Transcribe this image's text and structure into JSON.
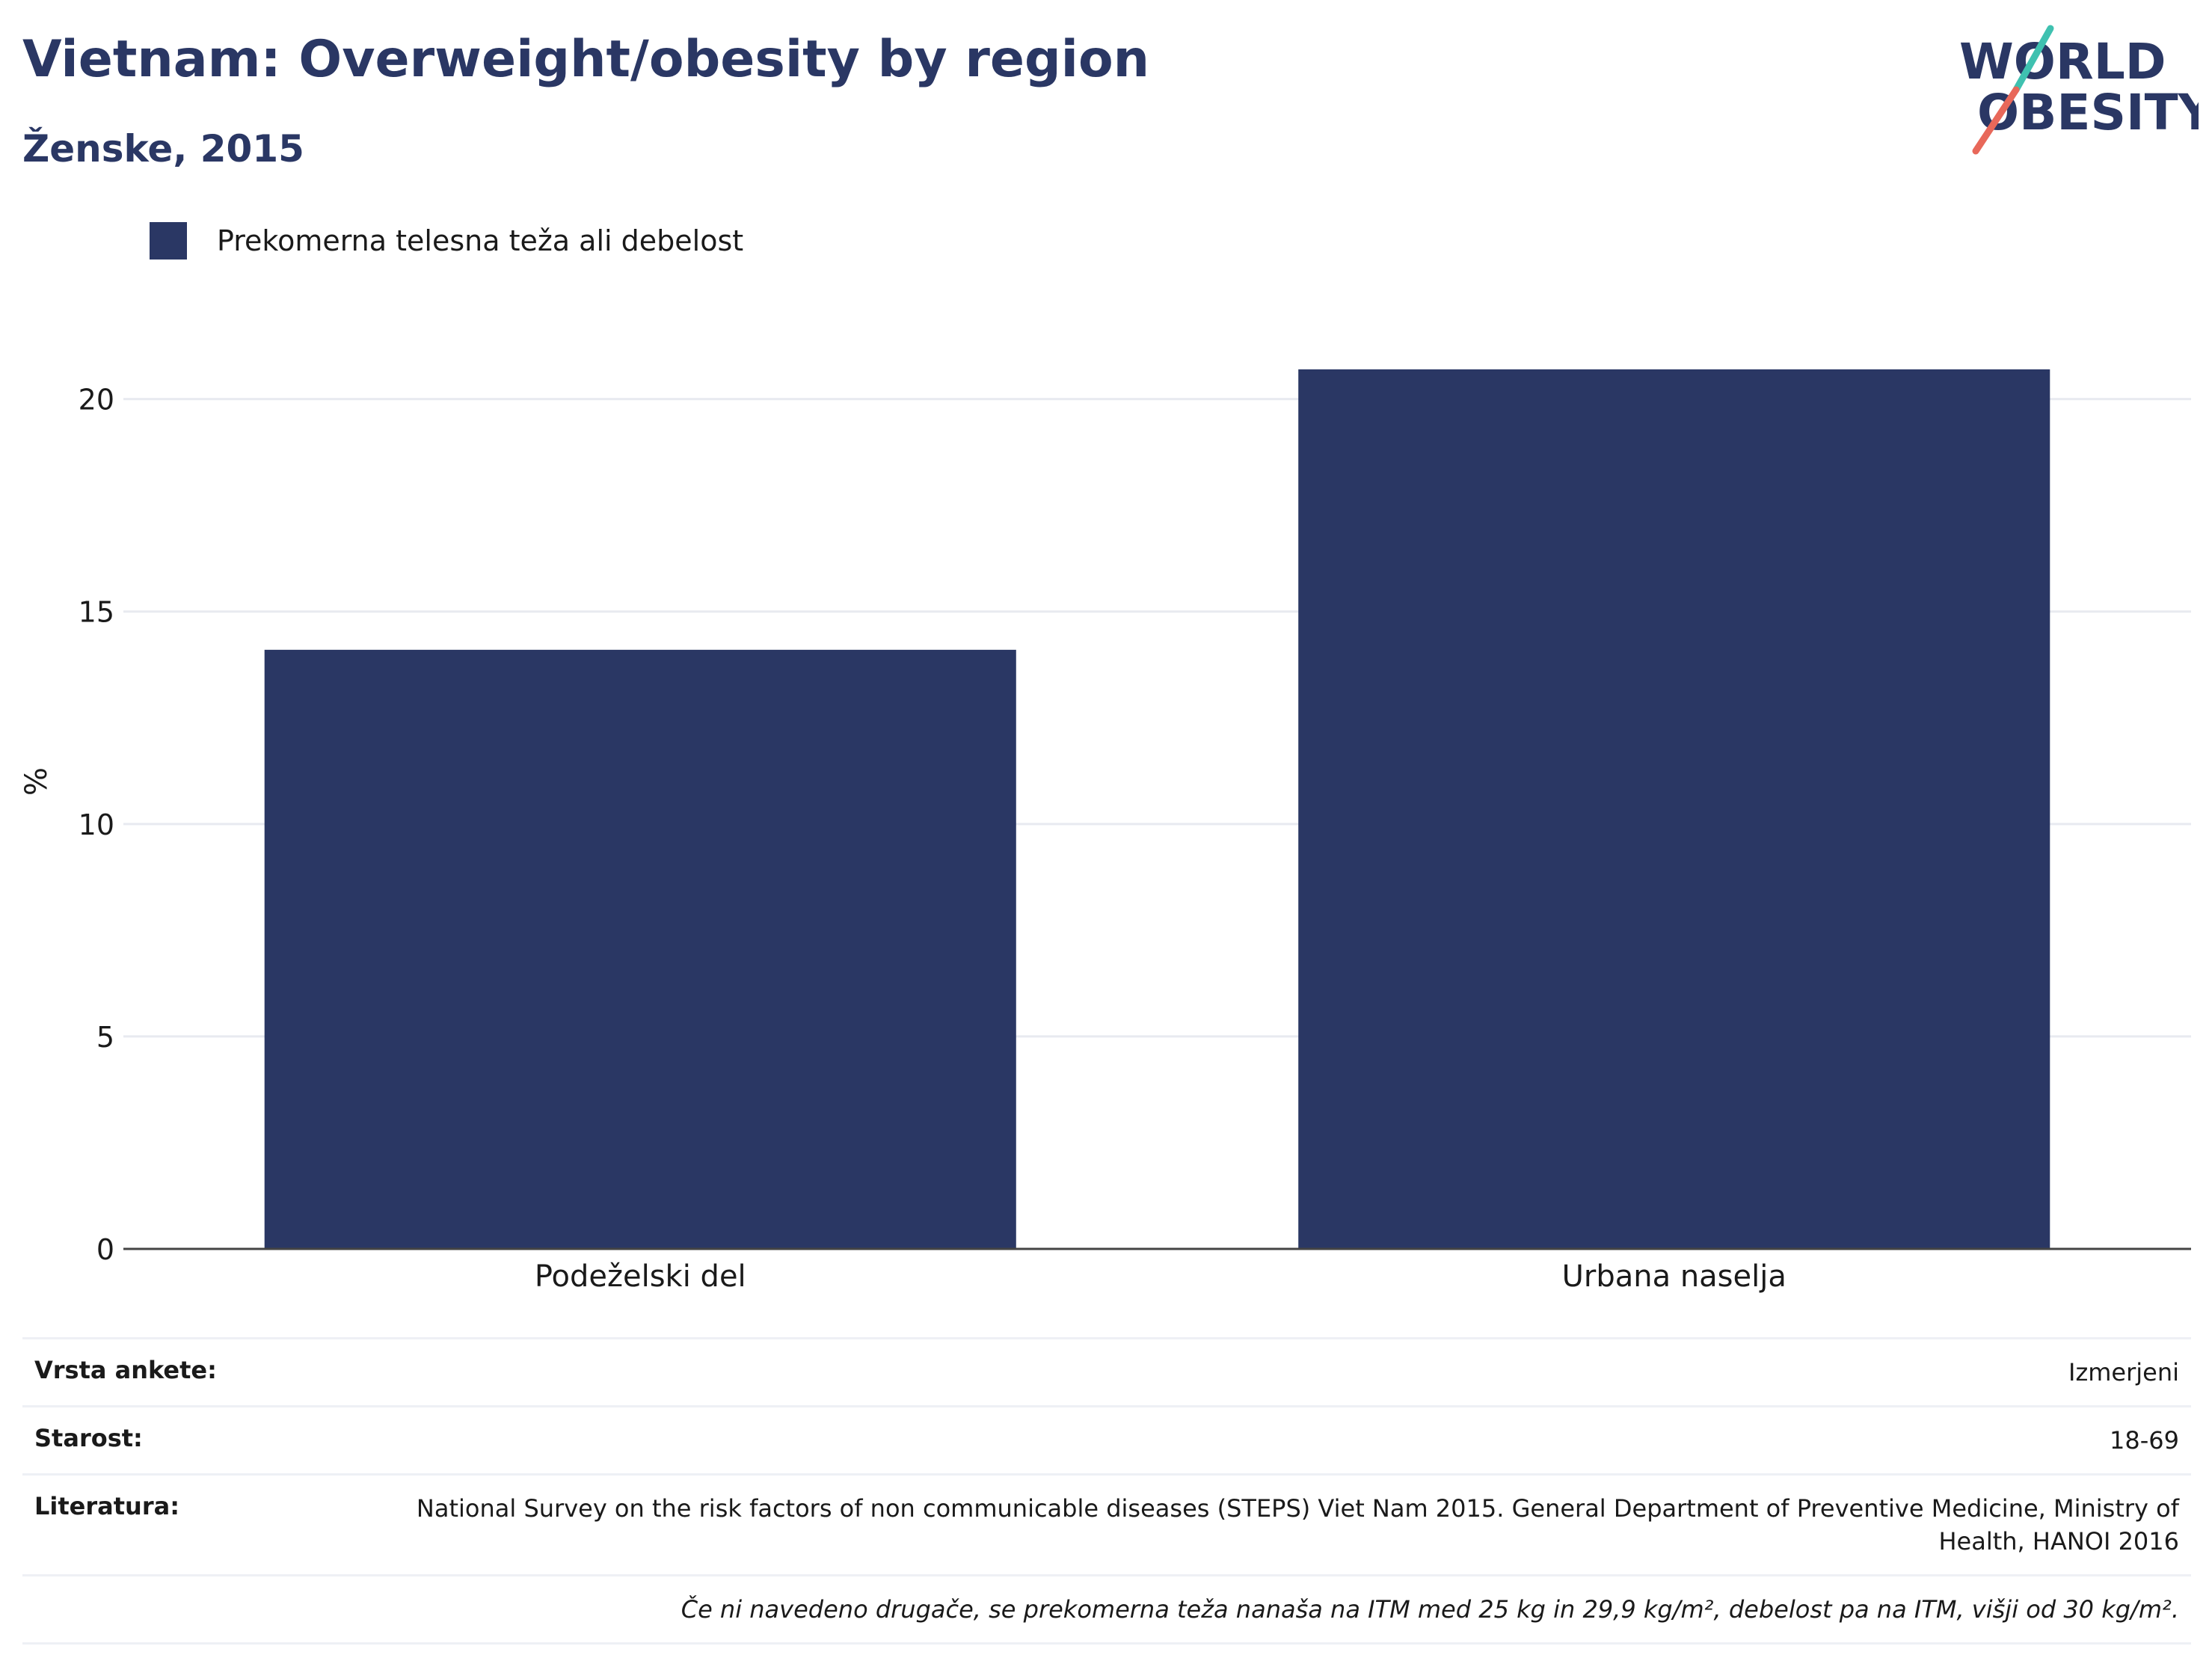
{
  "header": {
    "title": "Vietnam: Overweight/obesity by region",
    "subtitle": "Ženske, 2015"
  },
  "logo": {
    "line1": "WORLD",
    "line2": "OBESITY"
  },
  "colors": {
    "bar": "#2a3764",
    "title": "#2a3764",
    "grid": "#e8eaf0",
    "axis": "#444444",
    "logo_teal": "#3fc1b0",
    "logo_coral": "#e8685a"
  },
  "chart_data": {
    "type": "bar",
    "title": "Vietnam: Overweight/obesity by region",
    "subtitle": "Ženske, 2015",
    "categories": [
      "Podeželski del",
      "Urbana naselja"
    ],
    "series": [
      {
        "name": "Prekomerna telesna teža ali debelost",
        "values": [
          14.1,
          20.7
        ]
      }
    ],
    "ylabel": "%",
    "xlabel": "",
    "ylim": [
      0,
      22
    ],
    "yticks": [
      0,
      5,
      10,
      15,
      20
    ],
    "grid": true,
    "legend_position": "top-left"
  },
  "info": [
    {
      "label": "Vrsta ankete:",
      "value": "Izmerjeni"
    },
    {
      "label": "Starost:",
      "value": "18-69"
    },
    {
      "label": "Literatura:",
      "value": "National Survey on the risk factors of non communicable diseases (STEPS) Viet Nam 2015. General Department of Preventive Medicine, Ministry of Health, HANOI 2016"
    }
  ],
  "note": "Če ni navedeno drugače, se prekomerna teža nanaša na ITM med 25 kg in 29,9 kg/m², debelost pa na ITM, višji od 30 kg/m²."
}
